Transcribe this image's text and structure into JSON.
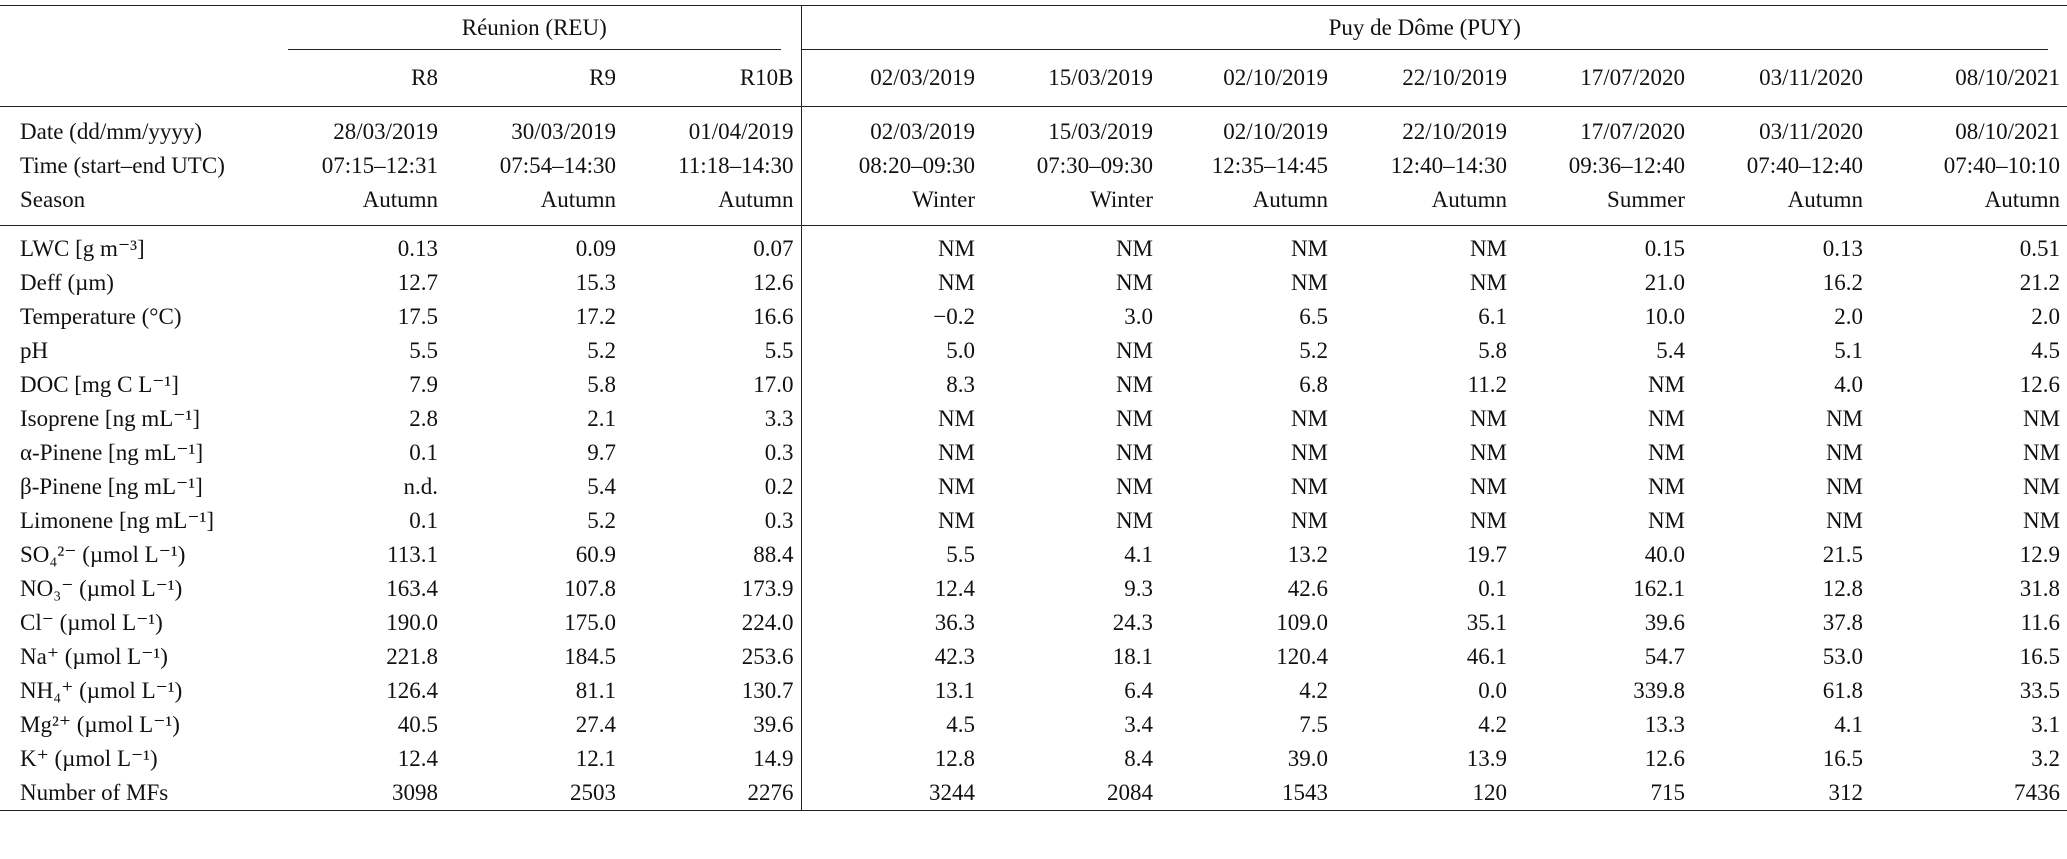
{
  "table": {
    "groups": [
      "Réunion (REU)",
      "Puy de Dôme (PUY)"
    ],
    "columns": [
      "R8",
      "R9",
      "R10B",
      "02/03/2019",
      "15/03/2019",
      "02/10/2019",
      "22/10/2019",
      "17/07/2020",
      "03/11/2020",
      "08/10/2021"
    ],
    "info_rows": [
      [
        "Date (dd/mm/yyyy)",
        "28/03/2019",
        "30/03/2019",
        "01/04/2019",
        "02/03/2019",
        "15/03/2019",
        "02/10/2019",
        "22/10/2019",
        "17/07/2020",
        "03/11/2020",
        "08/10/2021"
      ],
      [
        "Time (start–end UTC)",
        "07:15–12:31",
        "07:54–14:30",
        "11:18–14:30",
        "08:20–09:30",
        "07:30–09:30",
        "12:35–14:45",
        "12:40–14:30",
        "09:36–12:40",
        "07:40–12:40",
        "07:40–10:10"
      ],
      [
        "Season",
        "Autumn",
        "Autumn",
        "Autumn",
        "Winter",
        "Winter",
        "Autumn",
        "Autumn",
        "Summer",
        "Autumn",
        "Autumn"
      ]
    ],
    "rows": [
      [
        "LWC [g m⁻³]",
        "0.13",
        "0.09",
        "0.07",
        "NM",
        "NM",
        "NM",
        "NM",
        "0.15",
        "0.13",
        "0.51"
      ],
      [
        "Deff (µm)",
        "12.7",
        "15.3",
        "12.6",
        "NM",
        "NM",
        "NM",
        "NM",
        "21.0",
        "16.2",
        "21.2"
      ],
      [
        "Temperature (°C)",
        "17.5",
        "17.2",
        "16.6",
        "−0.2",
        "3.0",
        "6.5",
        "6.1",
        "10.0",
        "2.0",
        "2.0"
      ],
      [
        "pH",
        "5.5",
        "5.2",
        "5.5",
        "5.0",
        "NM",
        "5.2",
        "5.8",
        "5.4",
        "5.1",
        "4.5"
      ],
      [
        "DOC [mg C L⁻¹]",
        "7.9",
        "5.8",
        "17.0",
        "8.3",
        "NM",
        "6.8",
        "11.2",
        "NM",
        "4.0",
        "12.6"
      ],
      [
        "Isoprene [ng mL⁻¹]",
        "2.8",
        "2.1",
        "3.3",
        "NM",
        "NM",
        "NM",
        "NM",
        "NM",
        "NM",
        "NM"
      ],
      [
        "α-Pinene [ng mL⁻¹]",
        "0.1",
        "9.7",
        "0.3",
        "NM",
        "NM",
        "NM",
        "NM",
        "NM",
        "NM",
        "NM"
      ],
      [
        "β-Pinene [ng mL⁻¹]",
        "n.d.",
        "5.4",
        "0.2",
        "NM",
        "NM",
        "NM",
        "NM",
        "NM",
        "NM",
        "NM"
      ],
      [
        "Limonene [ng mL⁻¹]",
        "0.1",
        "5.2",
        "0.3",
        "NM",
        "NM",
        "NM",
        "NM",
        "NM",
        "NM",
        "NM"
      ],
      [
        "SO₄²⁻ (µmol L⁻¹)",
        "113.1",
        "60.9",
        "88.4",
        "5.5",
        "4.1",
        "13.2",
        "19.7",
        "40.0",
        "21.5",
        "12.9"
      ],
      [
        "NO₃⁻ (µmol L⁻¹)",
        "163.4",
        "107.8",
        "173.9",
        "12.4",
        "9.3",
        "42.6",
        "0.1",
        "162.1",
        "12.8",
        "31.8"
      ],
      [
        "Cl⁻ (µmol L⁻¹)",
        "190.0",
        "175.0",
        "224.0",
        "36.3",
        "24.3",
        "109.0",
        "35.1",
        "39.6",
        "37.8",
        "11.6"
      ],
      [
        "Na⁺ (µmol L⁻¹)",
        "221.8",
        "184.5",
        "253.6",
        "42.3",
        "18.1",
        "120.4",
        "46.1",
        "54.7",
        "53.0",
        "16.5"
      ],
      [
        "NH₄⁺ (µmol L⁻¹)",
        "126.4",
        "81.1",
        "130.7",
        "13.1",
        "6.4",
        "4.2",
        "0.0",
        "339.8",
        "61.8",
        "33.5"
      ],
      [
        "Mg²⁺ (µmol L⁻¹)",
        "40.5",
        "27.4",
        "39.6",
        "4.5",
        "3.4",
        "7.5",
        "4.2",
        "13.3",
        "4.1",
        "3.1"
      ],
      [
        "K⁺ (µmol L⁻¹)",
        "12.4",
        "12.1",
        "14.9",
        "12.8",
        "8.4",
        "39.0",
        "13.9",
        "12.6",
        "16.5",
        "3.2"
      ],
      [
        "Number of MFs",
        "3098",
        "2503",
        "2276",
        "3244",
        "2084",
        "1543",
        "120",
        "715",
        "312",
        "7436"
      ]
    ]
  }
}
